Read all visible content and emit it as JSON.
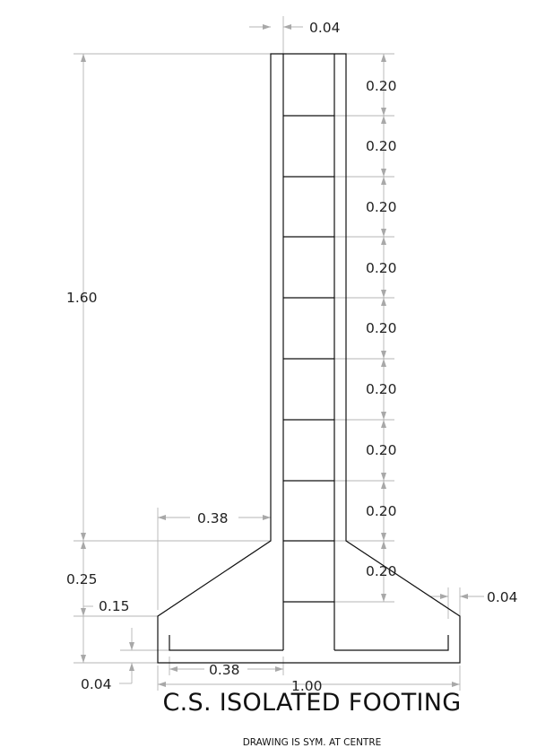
{
  "drawing": {
    "title": "C.S. ISOLATED FOOTING",
    "note": "DRAWING IS SYM. AT CENTRE",
    "dims": {
      "column_cover_top": "0.04",
      "column_height": "1.60",
      "tie_spacings": [
        "0.20",
        "0.20",
        "0.20",
        "0.20",
        "0.20",
        "0.20",
        "0.20",
        "0.20",
        "0.20"
      ],
      "slope_projection": "0.38",
      "slope_depth": "0.25",
      "edge_depth": "0.15",
      "footing_cover_bottom": "0.04",
      "bar_projection": "0.38",
      "footing_width": "1.00",
      "footing_cover_side": "0.04"
    }
  }
}
